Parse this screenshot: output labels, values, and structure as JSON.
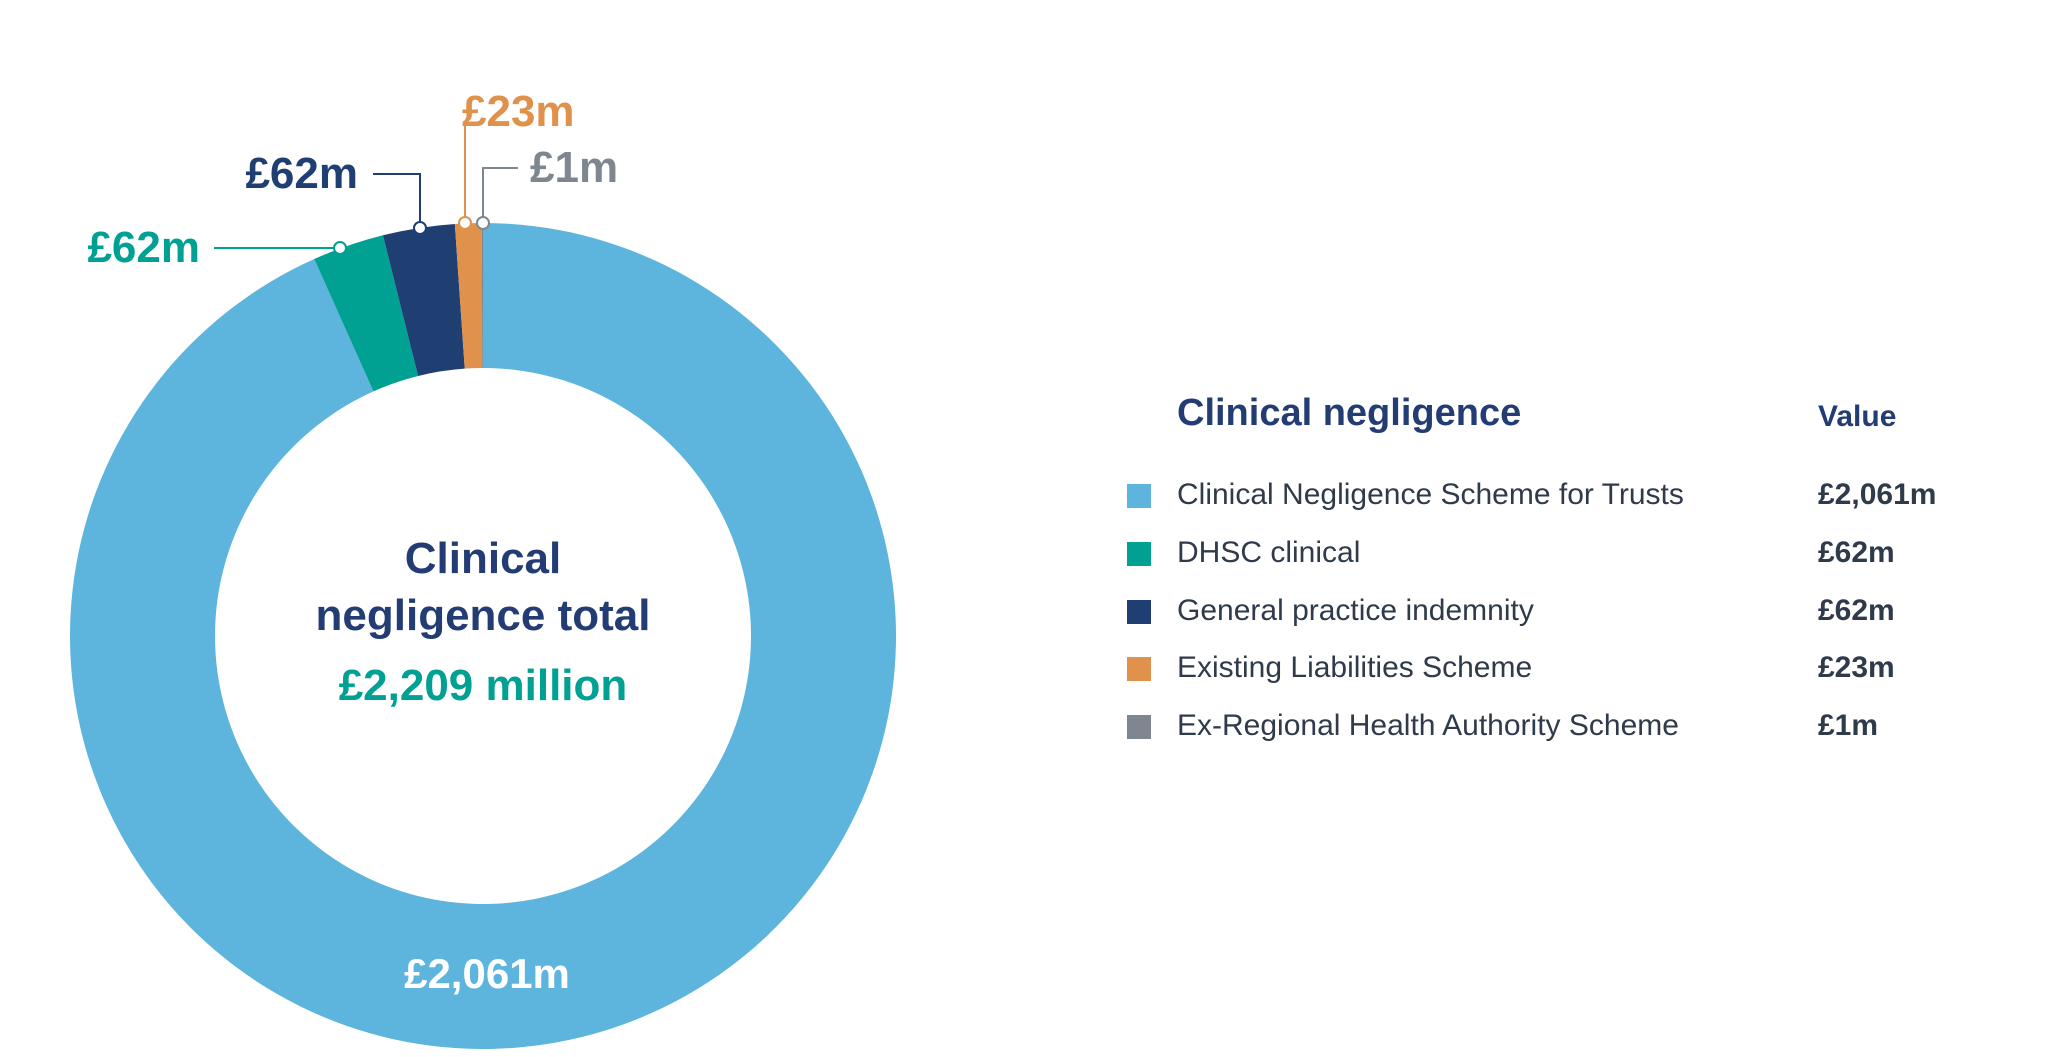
{
  "chart_data": {
    "type": "pie",
    "center_title": [
      "Clinical",
      "negligence total"
    ],
    "center_total": "£2,209 million",
    "legend_title": "Clinical negligence",
    "value_header": "Value",
    "slices": [
      {
        "name": "Clinical Negligence Scheme for Trusts",
        "value": 2061,
        "label": "£2,061m",
        "legend_value": "£2,061m",
        "color": "#5db4dc"
      },
      {
        "name": "DHSC clinical",
        "value": 62,
        "label": "£62m",
        "legend_value": "£62m",
        "color": "#00a093"
      },
      {
        "name": "General practice indemnity",
        "value": 62,
        "label": "£62m",
        "legend_value": "£62m",
        "color": "#1f3e72"
      },
      {
        "name": "Existing Liabilities Scheme",
        "value": 23,
        "label": "£23m",
        "legend_value": "£23m",
        "color": "#e0914b"
      },
      {
        "name": "Ex-Regional Health Authority Scheme",
        "value": 1,
        "label": "£1m",
        "legend_value": "£1m",
        "color": "#7e8790"
      }
    ],
    "label_colors": [
      "#ffffff",
      "#00a093",
      "#1f3e72",
      "#e0914b",
      "#7e8790"
    ]
  }
}
